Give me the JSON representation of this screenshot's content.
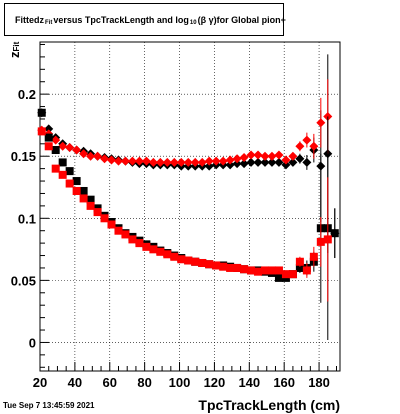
{
  "title": {
    "prefix": "Fitted",
    "z": "z",
    "z_sub": "Fit",
    "middle": "versus TpcTrackLength and log",
    "log_sub": "10",
    "beta_gamma": "(β γ)",
    "suffix": "for Global pion+"
  },
  "timestamp": "Tue Sep  7 13:45:59 2021",
  "chart_data": {
    "type": "scatter",
    "xlabel": "TpcTrackLength (cm)",
    "ylabel": "z",
    "ylabel_sub": "Fit",
    "xlim": [
      20,
      192
    ],
    "ylim": [
      -0.023,
      0.242
    ],
    "grid": true,
    "x_ticks": [
      20,
      40,
      60,
      80,
      100,
      120,
      140,
      160,
      180
    ],
    "y_ticks": [
      0,
      0.05,
      0.1,
      0.15,
      0.2
    ],
    "y_tick_labels": [
      "0",
      "0.05",
      "0.1",
      "0.15",
      "0.2"
    ],
    "series": [
      {
        "color": "#000000",
        "marker": "diamond",
        "x": [
          21,
          25,
          29,
          33,
          37,
          41,
          45,
          49,
          53,
          57,
          61,
          65,
          69,
          73,
          77,
          81,
          85,
          89,
          93,
          97,
          101,
          105,
          109,
          113,
          117,
          121,
          125,
          129,
          133,
          137,
          141,
          145,
          149,
          153,
          157,
          161,
          165,
          169,
          173,
          177,
          181,
          185,
          189
        ],
        "y": [
          0.185,
          0.172,
          0.165,
          0.16,
          0.157,
          0.155,
          0.154,
          0.152,
          0.15,
          0.149,
          0.148,
          0.147,
          0.146,
          0.145,
          0.144,
          0.144,
          0.143,
          0.143,
          0.143,
          0.143,
          0.142,
          0.142,
          0.142,
          0.142,
          0.142,
          0.143,
          0.143,
          0.143,
          0.144,
          0.144,
          0.145,
          0.145,
          0.145,
          0.145,
          0.145,
          0.143,
          0.145,
          0.148,
          0.145,
          0.155,
          0.142,
          0.152,
          0.088
        ],
        "err": [
          0.003,
          0.002,
          0.002,
          0.002,
          0.002,
          0.002,
          0.001,
          0.001,
          0.001,
          0.001,
          0.001,
          0.001,
          0.001,
          0.001,
          0.001,
          0.001,
          0.001,
          0.001,
          0.001,
          0.001,
          0.001,
          0.001,
          0.001,
          0.001,
          0.001,
          0.001,
          0.001,
          0.001,
          0.001,
          0.001,
          0.001,
          0.002,
          0.002,
          0.002,
          0.002,
          0.003,
          0.003,
          0.004,
          0.006,
          0.01,
          0.045,
          0.08,
          0.02
        ]
      },
      {
        "color": "#ff0000",
        "marker": "diamond",
        "x": [
          21,
          25,
          29,
          33,
          37,
          41,
          45,
          49,
          53,
          57,
          61,
          65,
          69,
          73,
          77,
          81,
          85,
          89,
          93,
          97,
          101,
          105,
          109,
          113,
          117,
          121,
          125,
          129,
          133,
          137,
          141,
          145,
          149,
          153,
          157,
          161,
          165,
          169,
          173,
          177,
          181,
          185
        ],
        "y": [
          0.171,
          0.168,
          0.163,
          0.158,
          0.157,
          0.155,
          0.152,
          0.15,
          0.15,
          0.148,
          0.147,
          0.146,
          0.146,
          0.146,
          0.146,
          0.146,
          0.145,
          0.145,
          0.145,
          0.145,
          0.145,
          0.145,
          0.145,
          0.145,
          0.146,
          0.146,
          0.146,
          0.147,
          0.148,
          0.149,
          0.151,
          0.151,
          0.15,
          0.15,
          0.151,
          0.147,
          0.15,
          0.158,
          0.163,
          0.158,
          0.177,
          0.182
        ],
        "err": [
          0.003,
          0.002,
          0.002,
          0.002,
          0.001,
          0.001,
          0.001,
          0.001,
          0.001,
          0.001,
          0.001,
          0.001,
          0.001,
          0.001,
          0.001,
          0.001,
          0.001,
          0.001,
          0.001,
          0.001,
          0.001,
          0.001,
          0.001,
          0.001,
          0.001,
          0.001,
          0.001,
          0.001,
          0.001,
          0.001,
          0.001,
          0.002,
          0.002,
          0.002,
          0.002,
          0.003,
          0.003,
          0.004,
          0.006,
          0.01,
          0.02,
          0.03
        ]
      },
      {
        "color": "#000000",
        "marker": "square",
        "x": [
          21,
          25,
          29,
          33,
          37,
          41,
          45,
          49,
          53,
          57,
          61,
          65,
          69,
          73,
          77,
          81,
          85,
          89,
          93,
          97,
          101,
          105,
          109,
          113,
          117,
          121,
          125,
          129,
          133,
          137,
          141,
          145,
          149,
          153,
          157,
          161,
          165,
          169,
          173,
          177,
          181,
          185,
          189
        ],
        "y": [
          0.185,
          0.165,
          0.155,
          0.145,
          0.138,
          0.13,
          0.122,
          0.115,
          0.108,
          0.102,
          0.097,
          0.092,
          0.088,
          0.085,
          0.082,
          0.079,
          0.077,
          0.074,
          0.072,
          0.07,
          0.068,
          0.066,
          0.065,
          0.064,
          0.063,
          0.062,
          0.062,
          0.061,
          0.06,
          0.059,
          0.058,
          0.058,
          0.057,
          0.056,
          0.052,
          0.052,
          0.055,
          0.06,
          0.06,
          0.065,
          0.092,
          0.092,
          0.088
        ],
        "err": [
          0.003,
          0.002,
          0.002,
          0.002,
          0.001,
          0.001,
          0.001,
          0.001,
          0.001,
          0.001,
          0.001,
          0.001,
          0.001,
          0.001,
          0.001,
          0.001,
          0.001,
          0.001,
          0.001,
          0.001,
          0.001,
          0.001,
          0.001,
          0.001,
          0.001,
          0.001,
          0.001,
          0.001,
          0.001,
          0.001,
          0.001,
          0.001,
          0.001,
          0.002,
          0.002,
          0.002,
          0.003,
          0.004,
          0.006,
          0.008,
          0.06,
          0.09,
          0.02
        ]
      },
      {
        "color": "#ff0000",
        "marker": "square",
        "x": [
          21,
          25,
          29,
          33,
          37,
          41,
          45,
          49,
          53,
          57,
          61,
          65,
          69,
          73,
          77,
          81,
          85,
          89,
          93,
          97,
          101,
          105,
          109,
          113,
          117,
          121,
          125,
          129,
          133,
          137,
          141,
          145,
          149,
          153,
          157,
          161,
          165,
          169,
          173,
          177,
          181,
          185
        ],
        "y": [
          0.17,
          0.158,
          0.14,
          0.135,
          0.128,
          0.122,
          0.116,
          0.11,
          0.105,
          0.1,
          0.095,
          0.09,
          0.087,
          0.083,
          0.08,
          0.077,
          0.075,
          0.073,
          0.071,
          0.069,
          0.067,
          0.066,
          0.065,
          0.064,
          0.063,
          0.062,
          0.061,
          0.06,
          0.06,
          0.059,
          0.058,
          0.057,
          0.058,
          0.058,
          0.058,
          0.055,
          0.055,
          0.065,
          0.058,
          0.069,
          0.081,
          0.083
        ],
        "err": [
          0.003,
          0.002,
          0.002,
          0.002,
          0.001,
          0.001,
          0.001,
          0.001,
          0.001,
          0.001,
          0.001,
          0.001,
          0.001,
          0.001,
          0.001,
          0.001,
          0.001,
          0.001,
          0.001,
          0.001,
          0.001,
          0.001,
          0.001,
          0.001,
          0.001,
          0.001,
          0.001,
          0.001,
          0.001,
          0.001,
          0.001,
          0.001,
          0.001,
          0.002,
          0.002,
          0.002,
          0.003,
          0.004,
          0.006,
          0.008,
          0.02,
          0.05
        ]
      }
    ]
  }
}
